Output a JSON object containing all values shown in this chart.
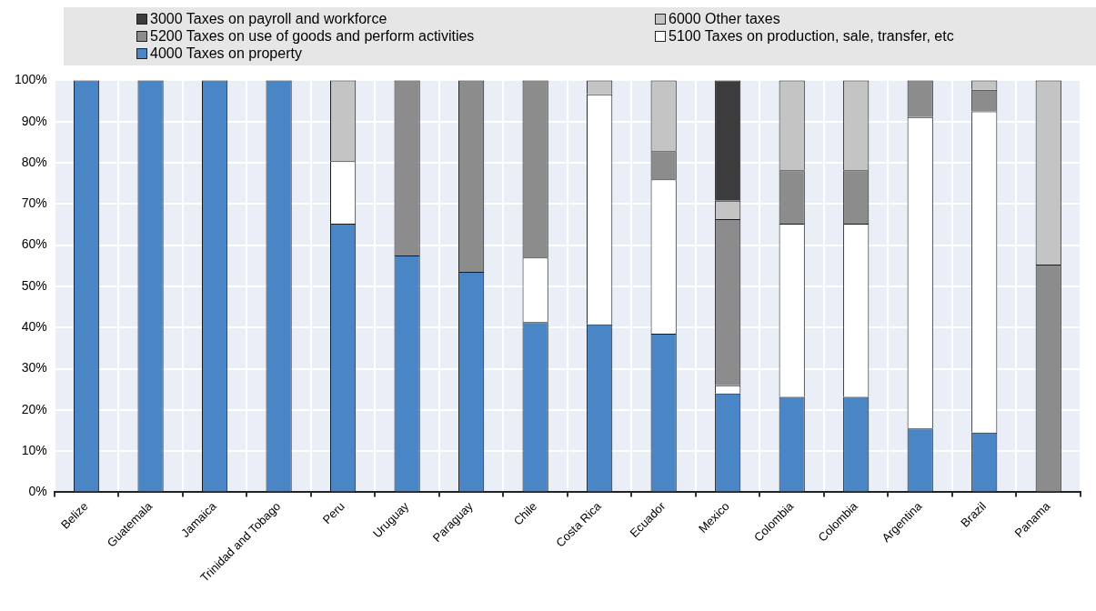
{
  "chart_data": {
    "type": "bar",
    "stacked": true,
    "legend": "top",
    "grid": true,
    "categories": [
      "Belize",
      "Guatemala",
      "Jamaica",
      "Trinidad and Tobago",
      "Peru",
      "Uruguay",
      "Paraguay",
      "Chile",
      "Costa Rica",
      "Ecuador",
      "Mexico",
      "Colombia",
      "Colombia",
      "Argentina",
      "Brazil",
      "Panama"
    ],
    "series": [
      {
        "name": "4000 Taxes on property",
        "color": "#4a86c5",
        "values": [
          100,
          100,
          100,
          100,
          65.2,
          57.5,
          53.5,
          41.3,
          40.8,
          38.5,
          24,
          23.2,
          23.2,
          15.5,
          14.5,
          0
        ]
      },
      {
        "name": "5100 Taxes on production, sale, transfer, etc",
        "color": "#ffffff",
        "values": [
          0,
          0,
          0,
          0,
          15.2,
          0,
          0,
          15.7,
          55.8,
          37.5,
          2,
          42,
          42,
          75.6,
          78,
          0
        ]
      },
      {
        "name": "5200 Taxes on use of goods and perform  activities",
        "color": "#8c8c8c",
        "values": [
          0,
          0,
          0,
          0,
          0,
          42.5,
          46.5,
          43,
          0,
          6.8,
          40.3,
          13,
          13,
          8.9,
          5.2,
          55.3
        ]
      },
      {
        "name": "6000 Other taxes",
        "color": "#c4c4c4",
        "values": [
          0,
          0,
          0,
          0,
          19.6,
          0,
          0,
          0,
          3.4,
          17.2,
          4.5,
          21.8,
          21.8,
          0,
          2.3,
          44.7
        ]
      },
      {
        "name": "3000 Taxes on payroll and workforce",
        "color": "#3c3c3c",
        "values": [
          0,
          0,
          0,
          0,
          0,
          0,
          0,
          0,
          0,
          0,
          29.2,
          0,
          0,
          0,
          0,
          0
        ]
      }
    ],
    "ylim": [
      0,
      100
    ],
    "yticks": [
      {
        "value": 0,
        "label": "0%"
      },
      {
        "value": 10,
        "label": "10%"
      },
      {
        "value": 20,
        "label": "20%"
      },
      {
        "value": 30,
        "label": "30%"
      },
      {
        "value": 40,
        "label": "40%"
      },
      {
        "value": 50,
        "label": "50%"
      },
      {
        "value": 60,
        "label": "60%"
      },
      {
        "value": 70,
        "label": "70%"
      },
      {
        "value": 80,
        "label": "80%"
      },
      {
        "value": 90,
        "label": "90%"
      },
      {
        "value": 100,
        "label": "100%"
      }
    ]
  }
}
